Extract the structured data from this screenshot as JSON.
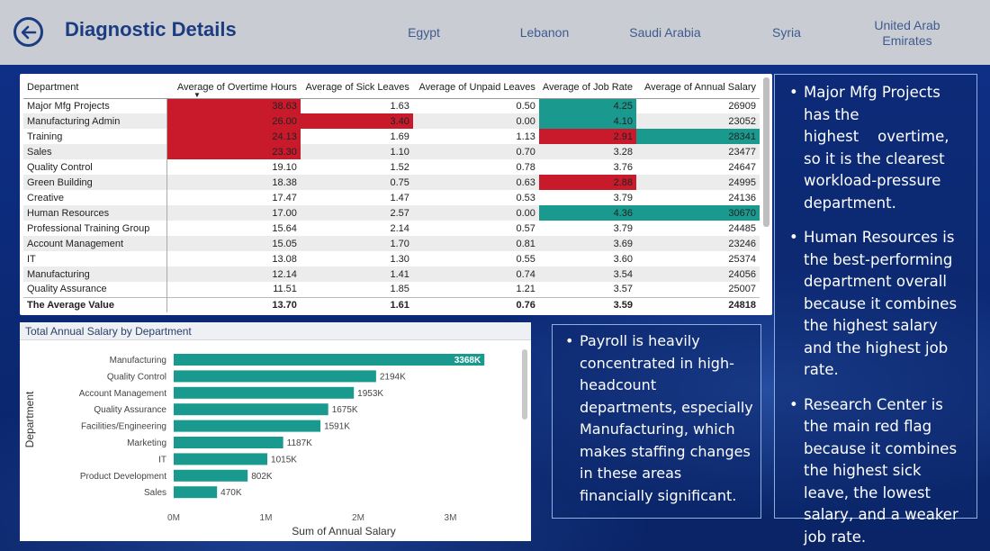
{
  "header": {
    "title": "Diagnostic Details",
    "countries": [
      "Egypt",
      "Lebanon",
      "Saudi Arabia",
      "Syria",
      "United Arab Emirates"
    ]
  },
  "table": {
    "columns": [
      "Department",
      "Average of Overtime Hours",
      "Average of Sick Leaves",
      "Average of Unpaid Leaves",
      "Average of Job Rate",
      "Average of Annual Salary"
    ],
    "rows": [
      {
        "dept": "Major Mfg Projects",
        "overtime": "38.63",
        "sick": "1.63",
        "unpaid": "0.50",
        "job": "4.25",
        "salary": "26909"
      },
      {
        "dept": "Manufacturing Admin",
        "overtime": "26.00",
        "sick": "3.40",
        "unpaid": "0.00",
        "job": "4.10",
        "salary": "23052"
      },
      {
        "dept": "Training",
        "overtime": "24.13",
        "sick": "1.69",
        "unpaid": "1.13",
        "job": "2.91",
        "salary": "28341"
      },
      {
        "dept": "Sales",
        "overtime": "23.30",
        "sick": "1.10",
        "unpaid": "0.70",
        "job": "3.28",
        "salary": "23477"
      },
      {
        "dept": "Quality Control",
        "overtime": "19.10",
        "sick": "1.52",
        "unpaid": "0.78",
        "job": "3.76",
        "salary": "24647"
      },
      {
        "dept": "Green Building",
        "overtime": "18.38",
        "sick": "0.75",
        "unpaid": "0.63",
        "job": "2.88",
        "salary": "24995"
      },
      {
        "dept": "Creative",
        "overtime": "17.47",
        "sick": "1.47",
        "unpaid": "0.53",
        "job": "3.79",
        "salary": "24136"
      },
      {
        "dept": "Human Resources",
        "overtime": "17.00",
        "sick": "2.57",
        "unpaid": "0.00",
        "job": "4.36",
        "salary": "30670"
      },
      {
        "dept": "Professional Training Group",
        "overtime": "15.64",
        "sick": "2.14",
        "unpaid": "0.57",
        "job": "3.79",
        "salary": "24485"
      },
      {
        "dept": "Account Management",
        "overtime": "15.05",
        "sick": "1.70",
        "unpaid": "0.81",
        "job": "3.69",
        "salary": "23246"
      },
      {
        "dept": "IT",
        "overtime": "13.08",
        "sick": "1.30",
        "unpaid": "0.55",
        "job": "3.60",
        "salary": "25374"
      },
      {
        "dept": "Manufacturing",
        "overtime": "12.14",
        "sick": "1.41",
        "unpaid": "0.74",
        "job": "3.54",
        "salary": "24056"
      },
      {
        "dept": "Quality Assurance",
        "overtime": "11.51",
        "sick": "1.85",
        "unpaid": "1.21",
        "job": "3.57",
        "salary": "25007"
      }
    ],
    "total": {
      "dept": "The Average Value",
      "overtime": "13.70",
      "sick": "1.61",
      "unpaid": "0.76",
      "job": "3.59",
      "salary": "24818"
    },
    "highlight_colors": {
      "red": "#c81a2a",
      "green": "#1a9a8e"
    }
  },
  "chart_data": {
    "type": "bar",
    "orientation": "horizontal",
    "title": "Total Annual Salary by Department",
    "xlabel": "Sum of Annual Salary",
    "ylabel": "Department",
    "categories": [
      "Manufacturing",
      "Quality Control",
      "Account Management",
      "Quality Assurance",
      "Facilities/Engineering",
      "Marketing",
      "IT",
      "Product Development",
      "Sales"
    ],
    "values": [
      3368000,
      2194000,
      1953000,
      1675000,
      1591000,
      1187000,
      1015000,
      802000,
      470000
    ],
    "data_labels": [
      "3368K",
      "2194K",
      "1953K",
      "1675K",
      "1591K",
      "1187K",
      "1015K",
      "802K",
      "470K"
    ],
    "xticks": [
      "0M",
      "1M",
      "2M",
      "3M"
    ],
    "xlim": [
      0,
      3000000
    ],
    "bar_color": "#1a9a8e",
    "grid": false
  },
  "notes": {
    "right": [
      "Major Mfg Projects has the highest    overtime, so it is the clearest workload-pressure department.",
      "Human Resources is the best-performing department overall because it combines the highest salary and the highest job rate.",
      "Research Center is the main red flag because it combines the highest sick leave, the lowest salary, and a weaker job rate."
    ],
    "middle": [
      "Payroll is heavily concentrated in high-headcount departments, especially Manufacturing, which makes staffing changes in these areas financially significant."
    ]
  }
}
